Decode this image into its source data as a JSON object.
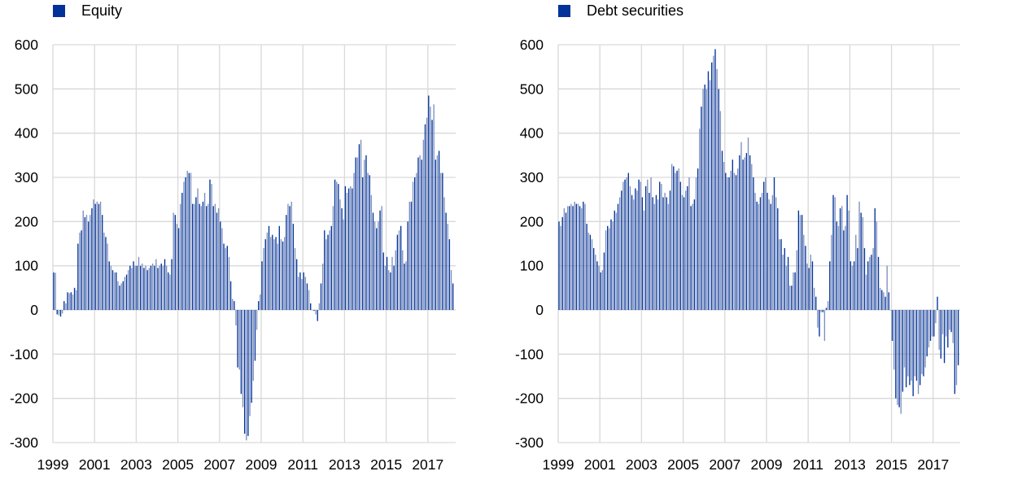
{
  "colors": {
    "bar": "#003299",
    "bar_alt": "#7d8fbf",
    "grid": "#d9d9d9"
  },
  "chart_data": [
    {
      "type": "bar",
      "title": "",
      "legend": "Equity",
      "legend_position": "top-left",
      "frequency": "monthly",
      "start": "1999-01",
      "ylim": [
        -300,
        600
      ],
      "yticks": [
        "600",
        "500",
        "400",
        "300",
        "200",
        "100",
        "0",
        "-100",
        "-200",
        "-300"
      ],
      "ytick_values": [
        600,
        500,
        400,
        300,
        200,
        100,
        0,
        -100,
        -200,
        -300
      ],
      "xticks": [
        "1999",
        "2001",
        "2003",
        "2005",
        "2007",
        "2009",
        "2011",
        "2013",
        "2015",
        "2017"
      ],
      "grid": true,
      "values": [
        85,
        84,
        -10,
        -12,
        -15,
        -8,
        20,
        15,
        40,
        38,
        40,
        35,
        50,
        45,
        150,
        175,
        180,
        225,
        210,
        215,
        200,
        215,
        230,
        250,
        240,
        245,
        240,
        245,
        215,
        175,
        165,
        150,
        110,
        100,
        90,
        85,
        85,
        65,
        55,
        60,
        65,
        75,
        80,
        90,
        100,
        95,
        110,
        100,
        100,
        120,
        100,
        105,
        95,
        100,
        90,
        95,
        100,
        105,
        100,
        115,
        95,
        100,
        105,
        100,
        115,
        100,
        85,
        80,
        115,
        220,
        215,
        195,
        185,
        240,
        265,
        290,
        300,
        315,
        310,
        310,
        240,
        240,
        255,
        275,
        240,
        235,
        245,
        265,
        235,
        240,
        295,
        285,
        235,
        240,
        220,
        230,
        200,
        185,
        150,
        140,
        145,
        120,
        65,
        25,
        20,
        -35,
        -130,
        -135,
        -190,
        -220,
        -280,
        -295,
        -285,
        -240,
        -210,
        -160,
        -115,
        -45,
        20,
        35,
        110,
        140,
        160,
        175,
        190,
        165,
        170,
        160,
        165,
        150,
        190,
        160,
        155,
        165,
        215,
        240,
        235,
        245,
        195,
        140,
        115,
        75,
        85,
        70,
        85,
        75,
        60,
        45,
        15,
        0,
        -2,
        -10,
        -25,
        15,
        60,
        105,
        180,
        160,
        170,
        180,
        190,
        235,
        295,
        290,
        285,
        250,
        230,
        205,
        280,
        265,
        275,
        280,
        275,
        310,
        345,
        345,
        375,
        385,
        300,
        340,
        350,
        310,
        305,
        260,
        220,
        200,
        185,
        200,
        225,
        235,
        130,
        100,
        120,
        90,
        85,
        120,
        100,
        135,
        170,
        180,
        190,
        135,
        105,
        110,
        200,
        245,
        245,
        290,
        300,
        310,
        345,
        350,
        340,
        385,
        420,
        435,
        485,
        460,
        430,
        465,
        340,
        350,
        360,
        310,
        310,
        255,
        220,
        195,
        160,
        90,
        60
      ]
    },
    {
      "type": "bar",
      "title": "",
      "legend": "Debt securities",
      "legend_position": "top-left",
      "frequency": "monthly",
      "start": "1999-01",
      "ylim": [
        -300,
        600
      ],
      "yticks": [
        "600",
        "500",
        "400",
        "300",
        "200",
        "100",
        "0",
        "-100",
        "-200",
        "-300"
      ],
      "ytick_values": [
        600,
        500,
        400,
        300,
        200,
        100,
        0,
        -100,
        -200,
        -300
      ],
      "xticks": [
        "1999",
        "2001",
        "2003",
        "2005",
        "2007",
        "2009",
        "2011",
        "2013",
        "2015",
        "2017"
      ],
      "grid": true,
      "values": [
        200,
        190,
        210,
        230,
        220,
        235,
        235,
        240,
        235,
        245,
        240,
        240,
        235,
        230,
        245,
        240,
        195,
        175,
        170,
        160,
        140,
        125,
        110,
        100,
        85,
        90,
        130,
        180,
        190,
        185,
        205,
        200,
        225,
        220,
        240,
        255,
        270,
        290,
        295,
        300,
        310,
        280,
        260,
        250,
        275,
        270,
        295,
        290,
        255,
        225,
        280,
        295,
        265,
        300,
        255,
        240,
        260,
        250,
        290,
        285,
        255,
        265,
        255,
        240,
        270,
        330,
        325,
        310,
        315,
        320,
        290,
        260,
        255,
        270,
        280,
        300,
        235,
        240,
        250,
        300,
        320,
        410,
        460,
        500,
        510,
        500,
        540,
        520,
        560,
        575,
        590,
        545,
        500,
        450,
        360,
        335,
        310,
        300,
        300,
        315,
        340,
        310,
        305,
        320,
        350,
        380,
        340,
        345,
        355,
        390,
        350,
        330,
        300,
        265,
        245,
        240,
        255,
        265,
        290,
        300,
        265,
        250,
        240,
        260,
        300,
        255,
        230,
        160,
        160,
        125,
        140,
        100,
        120,
        55,
        55,
        85,
        85,
        135,
        225,
        215,
        215,
        170,
        145,
        105,
        95,
        125,
        110,
        50,
        30,
        -40,
        -60,
        -5,
        -5,
        -70,
        5,
        20,
        110,
        170,
        260,
        255,
        200,
        190,
        230,
        235,
        180,
        190,
        260,
        225,
        110,
        100,
        110,
        170,
        140,
        245,
        220,
        210,
        140,
        80,
        110,
        120,
        125,
        140,
        230,
        200,
        120,
        50,
        45,
        40,
        30,
        100,
        40,
        0,
        -70,
        -135,
        -200,
        -215,
        -220,
        -235,
        -185,
        -130,
        -175,
        -150,
        -170,
        -160,
        -195,
        -150,
        -160,
        -190,
        -170,
        -145,
        -150,
        -130,
        -105,
        -85,
        -70,
        -60,
        -60,
        -30,
        30,
        -90,
        -110,
        -55,
        -120,
        -60,
        -85,
        -45,
        -50,
        -75,
        -190,
        -170,
        -125
      ]
    }
  ]
}
